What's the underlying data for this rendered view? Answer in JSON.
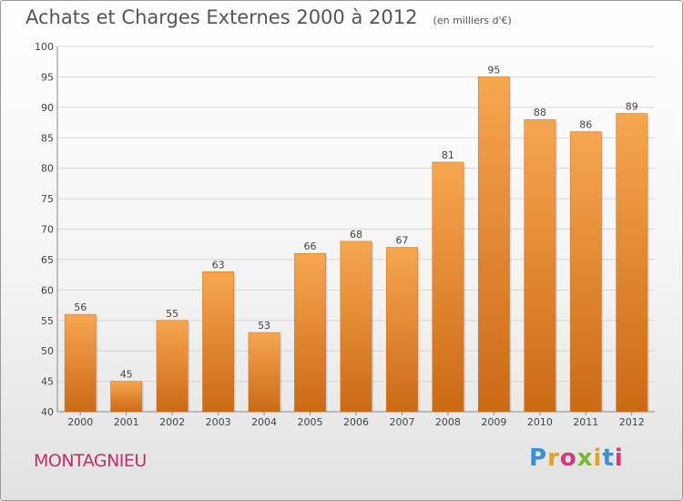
{
  "title": "Achats et Charges Externes 2000 à 2012",
  "subtitle": "(en milliers d'€)",
  "commune": "MONTAGNIEU",
  "brand": "Proxiti",
  "colors": {
    "bar_top": "#f7a650",
    "bar_bottom": "#cc6a14",
    "grid": "#d8d8d8",
    "commune": "#c0306a"
  },
  "chart_data": {
    "type": "bar",
    "title": "Achats et Charges Externes 2000 à 2012",
    "subtitle": "(en milliers d'€)",
    "categories": [
      "2000",
      "2001",
      "2002",
      "2003",
      "2004",
      "2005",
      "2006",
      "2007",
      "2008",
      "2009",
      "2010",
      "2011",
      "2012"
    ],
    "values": [
      56,
      45,
      55,
      63,
      53,
      66,
      68,
      67,
      81,
      95,
      88,
      86,
      89
    ],
    "ylim": [
      40,
      100
    ],
    "yticks": [
      40,
      45,
      50,
      55,
      60,
      65,
      70,
      75,
      80,
      85,
      90,
      95,
      100
    ],
    "grid": true,
    "xlabel": "",
    "ylabel": ""
  }
}
